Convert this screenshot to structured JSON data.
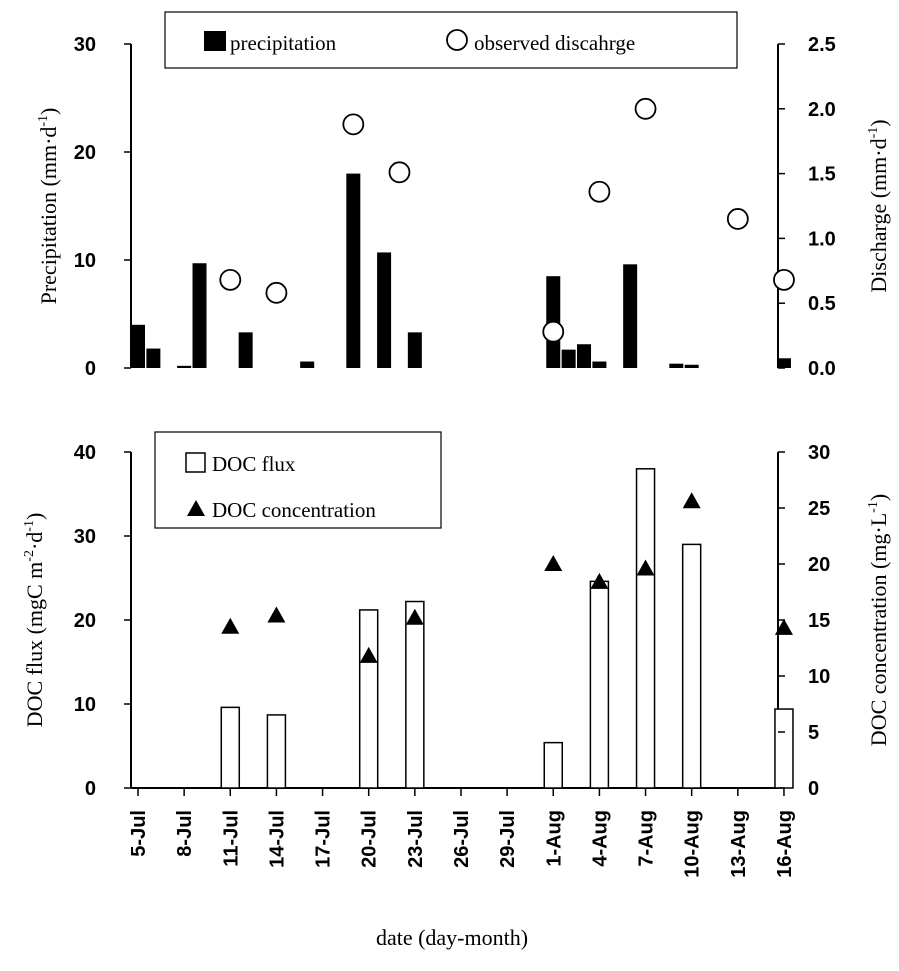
{
  "chart_data": [
    {
      "type": "bar",
      "panel": "top",
      "x_dates": [
        "5-Jul",
        "6-Jul",
        "7-Jul",
        "8-Jul",
        "9-Jul",
        "10-Jul",
        "11-Jul",
        "12-Jul",
        "13-Jul",
        "14-Jul",
        "15-Jul",
        "16-Jul",
        "17-Jul",
        "18-Jul",
        "19-Jul",
        "20-Jul",
        "21-Jul",
        "22-Jul",
        "23-Jul",
        "24-Jul",
        "25-Jul",
        "26-Jul",
        "27-Jul",
        "28-Jul",
        "29-Jul",
        "30-Jul",
        "31-Jul",
        "1-Aug",
        "2-Aug",
        "3-Aug",
        "4-Aug",
        "5-Aug",
        "6-Aug",
        "7-Aug",
        "8-Aug",
        "9-Aug",
        "10-Aug",
        "11-Aug",
        "12-Aug",
        "13-Aug",
        "14-Aug",
        "15-Aug",
        "16-Aug"
      ],
      "xlabel_ticks": [
        "5-Jul",
        "8-Jul",
        "11-Jul",
        "14-Jul",
        "17-Jul",
        "20-Jul",
        "23-Jul",
        "26-Jul",
        "29-Jul",
        "1-Aug",
        "4-Aug",
        "7-Aug",
        "10-Aug",
        "13-Aug",
        "16-Aug"
      ],
      "series": [
        {
          "name": "precipitation",
          "axis": "left",
          "values": [
            4.0,
            1.8,
            0,
            0.2,
            9.7,
            0,
            0,
            3.3,
            0,
            0,
            0,
            0.6,
            0,
            0,
            18.0,
            0,
            10.7,
            0,
            3.3,
            0,
            0,
            0,
            0,
            0,
            0,
            0,
            0,
            8.5,
            1.7,
            2.2,
            0.6,
            0,
            9.6,
            0,
            0,
            0.4,
            0.3,
            0,
            0,
            0,
            0,
            0,
            0.9
          ]
        },
        {
          "name": "observed discahrge",
          "axis": "right",
          "points": [
            [
              "11-Jul",
              0.68
            ],
            [
              "14-Jul",
              0.58
            ],
            [
              "19-Jul",
              1.88
            ],
            [
              "22-Jul",
              1.51
            ],
            [
              "1-Aug",
              0.28
            ],
            [
              "4-Aug",
              1.36
            ],
            [
              "7-Aug",
              2.0
            ],
            [
              "13-Aug",
              1.15
            ],
            [
              "16-Aug",
              0.68
            ]
          ]
        }
      ],
      "ylabel_left": "Precipitation (mm·d",
      "ylabel_left_sup": "-1",
      "ylabel_left_end": ")",
      "ylabel_right": "Discharge (mm·d",
      "ylabel_right_sup": "-1",
      "ylabel_right_end": ")",
      "ylim_left": [
        0,
        30
      ],
      "ylim_right": [
        0,
        2.5
      ],
      "yticks_left": [
        "0",
        "10",
        "20",
        "30"
      ],
      "yticks_right": [
        "0.0",
        "0.5",
        "1.0",
        "1.5",
        "2.0",
        "2.5"
      ],
      "legend_position": "top-center"
    },
    {
      "type": "bar",
      "panel": "bottom",
      "series": [
        {
          "name": "DOC flux",
          "axis": "left",
          "points": [
            [
              "11-Jul",
              9.6
            ],
            [
              "14-Jul",
              8.7
            ],
            [
              "20-Jul",
              21.2
            ],
            [
              "23-Jul",
              22.2
            ],
            [
              "1-Aug",
              5.4
            ],
            [
              "4-Aug",
              24.6
            ],
            [
              "7-Aug",
              38.0
            ],
            [
              "10-Aug",
              29.0
            ],
            [
              "16-Aug",
              9.4
            ]
          ]
        },
        {
          "name": "DOC concentration",
          "axis": "right",
          "points": [
            [
              "11-Jul",
              14.4
            ],
            [
              "14-Jul",
              15.4
            ],
            [
              "20-Jul",
              11.8
            ],
            [
              "23-Jul",
              15.2
            ],
            [
              "1-Aug",
              20.0
            ],
            [
              "4-Aug",
              18.4
            ],
            [
              "7-Aug",
              19.6
            ],
            [
              "10-Aug",
              25.6
            ],
            [
              "16-Aug",
              14.3
            ]
          ]
        }
      ],
      "ylabel_left": "DOC flux (mgC m",
      "ylabel_left_sup1": "-2",
      "ylabel_left_mid": "·d",
      "ylabel_left_sup2": "-1",
      "ylabel_left_end": ")",
      "ylabel_right": "DOC concentration (mg·L",
      "ylabel_right_sup": "-1",
      "ylabel_right_end": ")",
      "ylim_left": [
        0,
        40
      ],
      "ylim_right": [
        0,
        30
      ],
      "yticks_left": [
        "0",
        "10",
        "20",
        "30",
        "40"
      ],
      "yticks_right": [
        "0",
        "5",
        "10",
        "15",
        "20",
        "25",
        "30"
      ],
      "legend_position": "top-left"
    }
  ],
  "xlabel": "date (day-month)"
}
